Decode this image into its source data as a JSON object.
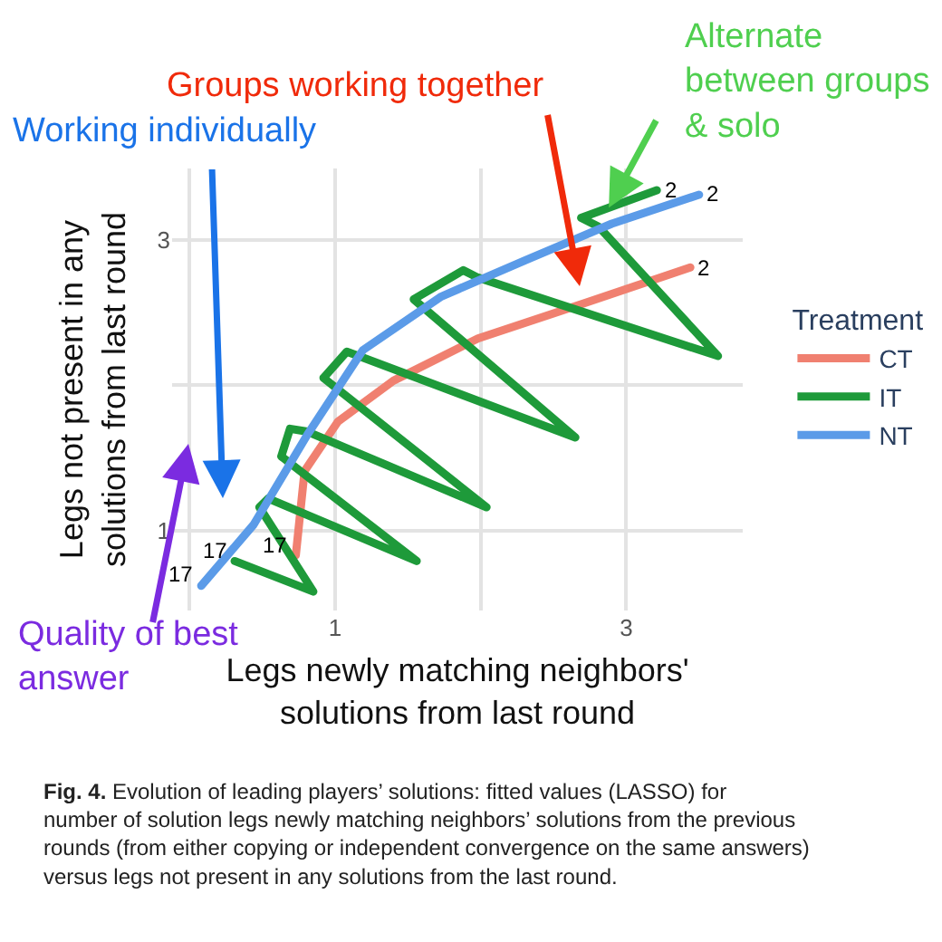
{
  "chart_data": {
    "type": "line",
    "xlabel": "Legs newly matching neighbors'\nsolutions from last round",
    "ylabel": "Legs not present in any\nsolutions from last round",
    "legend_title": "Treatment",
    "xlim": [
      -0.12,
      3.8
    ],
    "ylim": [
      0.45,
      3.49
    ],
    "xticks": [
      {
        "value": 0,
        "label": null
      },
      1,
      {
        "value": 2,
        "label": null
      },
      3
    ],
    "yticks": [
      1,
      {
        "value": 2,
        "label": null
      },
      3
    ],
    "grid": true,
    "legend": "right",
    "line_style": "solid",
    "marker": "none",
    "series": [
      {
        "name": "CT",
        "color": "#f08070",
        "x": [
          0.73,
          0.79,
          1.02,
          1.4,
          1.98,
          2.73,
          3.44
        ],
        "values": [
          0.83,
          1.41,
          1.75,
          2.03,
          2.32,
          2.57,
          2.81
        ]
      },
      {
        "name": "IT",
        "color": "#1e9a3a",
        "x": [
          0.31,
          0.85,
          0.48,
          0.54,
          1.56,
          0.63,
          0.69,
          0.81,
          2.04,
          0.92,
          1.08,
          1.19,
          2.65,
          1.54,
          1.88,
          1.98,
          3.63,
          2.81,
          2.69,
          3.21
        ],
        "values": [
          0.79,
          0.58,
          1.16,
          1.22,
          0.79,
          1.51,
          1.7,
          1.68,
          1.16,
          2.05,
          2.23,
          2.19,
          1.64,
          2.59,
          2.79,
          2.74,
          2.2,
          3.09,
          3.15,
          3.34
        ]
      },
      {
        "name": "NT",
        "color": "#5b9be8",
        "x": [
          0.08,
          0.44,
          0.81,
          1.19,
          1.73,
          2.31,
          2.9,
          3.5
        ],
        "values": [
          0.62,
          1.04,
          1.66,
          2.24,
          2.61,
          2.86,
          3.11,
          3.31
        ]
      }
    ],
    "annotations": [
      {
        "text": "17",
        "x": 0.08,
        "y": 0.62
      },
      {
        "text": "17",
        "x": 0.31,
        "y": 0.79
      },
      {
        "text": "17",
        "x": 0.73,
        "y": 0.83
      },
      {
        "text": "2",
        "x": 3.21,
        "y": 3.34
      },
      {
        "text": "2",
        "x": 3.5,
        "y": 3.31
      },
      {
        "text": "2",
        "x": 3.44,
        "y": 2.81
      },
      "Working individually",
      "Groups working together",
      {
        "text": "Alternate\nbetween groups\n& solo",
        "x": 2.88,
        "y": 3.22
      },
      "Quality of best\nanswer",
      "Fig. 4. Evolution of leading players’ solutions: fitted values (LASSO) for number of solution legs newly matching neighbors’ solutions from the previous rounds (from either copying or independent convergence on the same answers) versus legs not present in any solutions from the last round."
    ]
  }
}
